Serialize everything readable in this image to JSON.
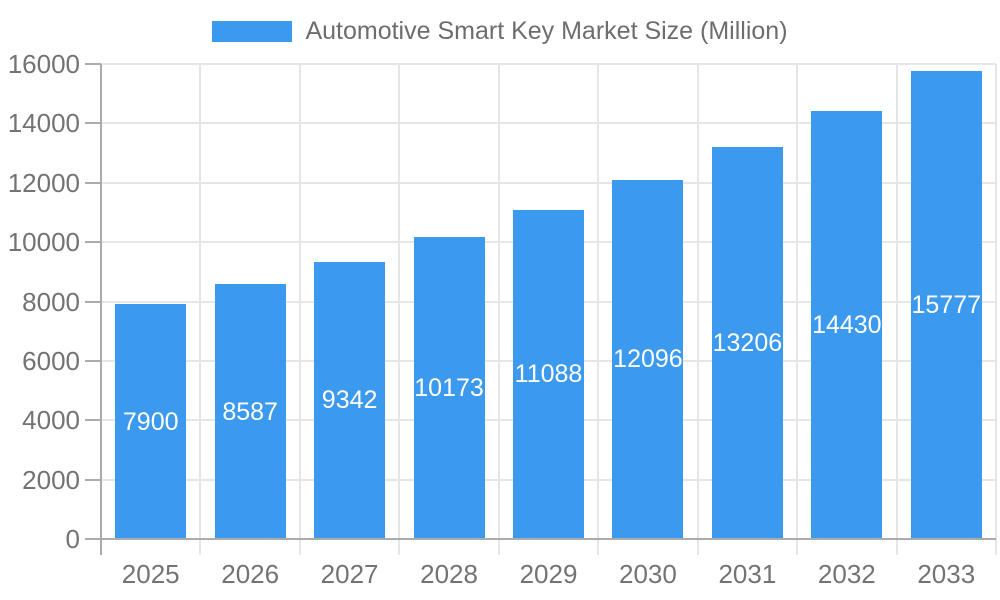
{
  "legend": {
    "label": "Automotive Smart Key Market Size (Million)"
  },
  "chart_data": {
    "type": "bar",
    "title": "Automotive Smart Key Market Size (Million)",
    "categories": [
      "2025",
      "2026",
      "2027",
      "2028",
      "2029",
      "2030",
      "2031",
      "2032",
      "2033"
    ],
    "values": [
      7900,
      8587,
      9342,
      10173,
      11088,
      12096,
      13206,
      14430,
      15777
    ],
    "series_name": "Automotive Smart Key Market Size (Million)",
    "xlabel": "",
    "ylabel": "",
    "ylim": [
      0,
      16000
    ],
    "yticks": [
      0,
      2000,
      4000,
      6000,
      8000,
      10000,
      12000,
      14000,
      16000
    ],
    "grid": true,
    "legend_position": "top",
    "value_labels": "inside-center"
  },
  "colors": {
    "bar": "#3B99EE",
    "bar_value_text": "#FFFFFF",
    "axis_line": "#ABABAB",
    "gridline": "#E6E6E6",
    "tick_label": "#737373",
    "legend_text": "#6D6D6D",
    "background": "#FFFFFF"
  }
}
